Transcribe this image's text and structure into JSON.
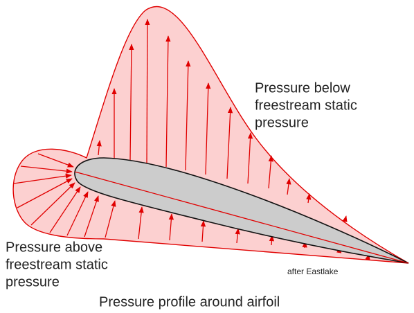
{
  "labels": {
    "below": [
      "Pressure below",
      "freestream static",
      "pressure"
    ],
    "above": [
      "Pressure above",
      "freestream static",
      "pressure"
    ],
    "credit": "after Eastlake",
    "caption": "Pressure profile around airfoil"
  }
}
